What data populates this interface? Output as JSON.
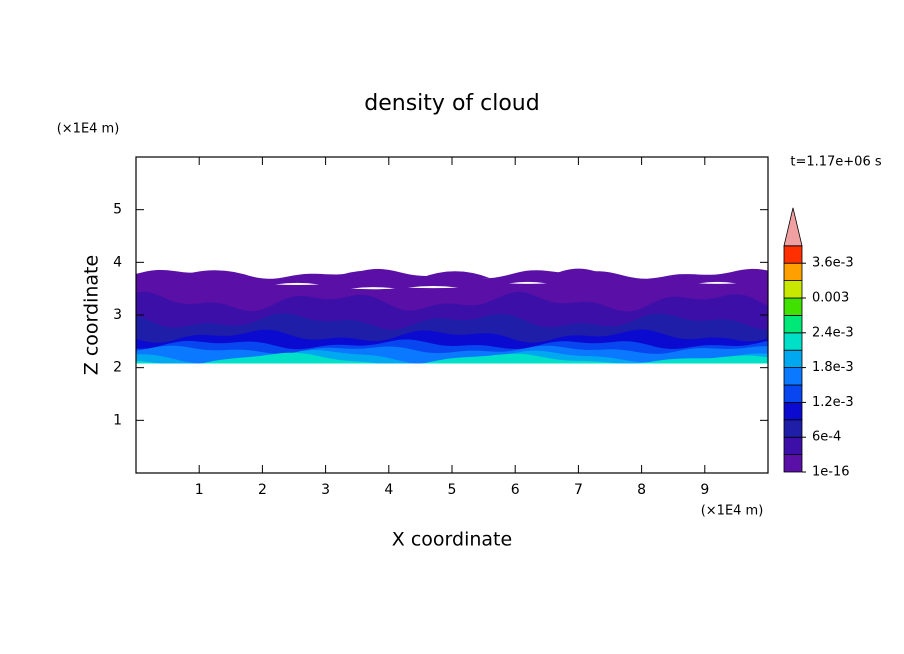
{
  "chart_data": {
    "type": "contour",
    "title": "density of cloud",
    "x_label": "X coordinate",
    "y_label": "Z coordinate",
    "x_unit": "(×1E4 m)",
    "y_unit": "(×1E4 m)",
    "annotation": "t=1.17e+06 s",
    "xlim": [
      0,
      10
    ],
    "ylim": [
      0,
      6
    ],
    "xticks": [
      1,
      2,
      3,
      4,
      5,
      6,
      7,
      8,
      9
    ],
    "yticks": [
      1,
      2,
      3,
      4,
      5
    ],
    "levels": [
      1e-16,
      0.0003,
      0.0006,
      0.0009,
      0.0012,
      0.0015,
      0.0018,
      0.0021,
      0.0024,
      0.0027,
      0.003,
      0.0033,
      0.0036,
      0.0039
    ],
    "colors": [
      "#5a0fa6",
      "#3c10a8",
      "#1e1ea8",
      "#0a0ad0",
      "#0846f0",
      "#0a78ff",
      "#00a8f0",
      "#00e0c8",
      "#00e878",
      "#40e000",
      "#c8e800",
      "#ffa000",
      "#ff3000"
    ],
    "extend_color": "#f0a0a0",
    "colorbar_ticks": [
      1e-16,
      {
        "value": 0.0006,
        "label": "6e-4"
      },
      {
        "value": 0.0012,
        "label": "1.2e-3"
      },
      {
        "value": 0.0018,
        "label": "1.8e-3"
      },
      {
        "value": 0.0024,
        "label": "2.4e-3"
      },
      0.003,
      {
        "value": 0.0036,
        "label": "3.6e-3"
      }
    ]
  }
}
